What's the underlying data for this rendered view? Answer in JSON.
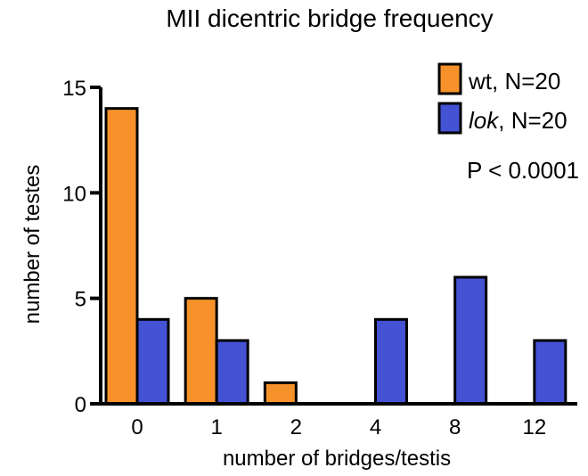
{
  "chart_data": {
    "type": "bar",
    "title": "MII dicentric bridge frequency",
    "xlabel": "number of bridges/testis",
    "ylabel": "number of testes",
    "categories": [
      "0",
      "1",
      "2",
      "4",
      "8",
      "12"
    ],
    "ylim": [
      0,
      15
    ],
    "yticks": [
      "0",
      "5",
      "10",
      "15"
    ],
    "series": [
      {
        "name": "wt",
        "legend_suffix": ", N=20",
        "color": "#f7922a",
        "values": [
          14,
          5,
          1,
          0,
          0,
          0
        ]
      },
      {
        "name": "lok",
        "legend_suffix": ", N=20",
        "name_italic": true,
        "color": "#4452d4",
        "values": [
          4,
          3,
          0,
          4,
          6,
          3
        ]
      }
    ],
    "legend_position": "top-right",
    "annotation": "P < 0.0001",
    "grid": false
  }
}
